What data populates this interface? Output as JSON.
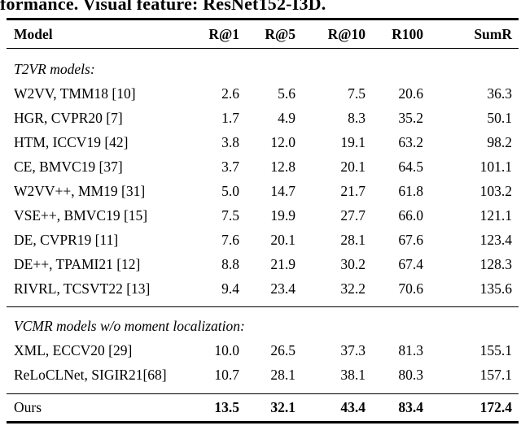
{
  "caption_fragment": "formance. Visual feature: ResNet152-I3D.",
  "colors": {
    "text": "#000000",
    "background": "#ffffff",
    "rule": "#000000"
  },
  "table": {
    "columns": [
      {
        "key": "model",
        "label": "Model"
      },
      {
        "key": "r1",
        "label": "R@1"
      },
      {
        "key": "r5",
        "label": "R@5"
      },
      {
        "key": "r10",
        "label": "R@10"
      },
      {
        "key": "r100",
        "label": "R100"
      },
      {
        "key": "sumr",
        "label": "SumR"
      }
    ],
    "sections": [
      {
        "heading": "T2VR models:",
        "rows": [
          {
            "model": "W2VV, TMM18 [10]",
            "values": [
              "2.6",
              "5.6",
              "7.5",
              "20.6",
              "36.3"
            ]
          },
          {
            "model": "HGR, CVPR20 [7]",
            "values": [
              "1.7",
              "4.9",
              "8.3",
              "35.2",
              "50.1"
            ]
          },
          {
            "model": "HTM, ICCV19 [42]",
            "values": [
              "3.8",
              "12.0",
              "19.1",
              "63.2",
              "98.2"
            ]
          },
          {
            "model": "CE, BMVC19 [37]",
            "values": [
              "3.7",
              "12.8",
              "20.1",
              "64.5",
              "101.1"
            ]
          },
          {
            "model": "W2VV++, MM19 [31]",
            "values": [
              "5.0",
              "14.7",
              "21.7",
              "61.8",
              "103.2"
            ]
          },
          {
            "model": "VSE++, BMVC19 [15]",
            "values": [
              "7.5",
              "19.9",
              "27.7",
              "66.0",
              "121.1"
            ]
          },
          {
            "model": "DE, CVPR19 [11]",
            "values": [
              "7.6",
              "20.1",
              "28.1",
              "67.6",
              "123.4"
            ]
          },
          {
            "model": "DE++, TPAMI21 [12]",
            "values": [
              "8.8",
              "21.9",
              "30.2",
              "67.4",
              "128.3"
            ]
          },
          {
            "model": "RIVRL, TCSVT22 [13]",
            "values": [
              "9.4",
              "23.4",
              "32.2",
              "70.6",
              "135.6"
            ]
          }
        ]
      },
      {
        "heading": "VCMR models w/o moment localization:",
        "rows": [
          {
            "model": "XML, ECCV20 [29]",
            "values": [
              "10.0",
              "26.5",
              "37.3",
              "81.3",
              "155.1"
            ]
          },
          {
            "model": "ReLoCLNet, SIGIR21[68]",
            "values": [
              "10.7",
              "28.1",
              "38.1",
              "80.3",
              "157.1"
            ]
          }
        ]
      }
    ],
    "final_row": {
      "model": "Ours",
      "values": [
        "13.5",
        "32.1",
        "43.4",
        "83.4",
        "172.4"
      ]
    }
  }
}
